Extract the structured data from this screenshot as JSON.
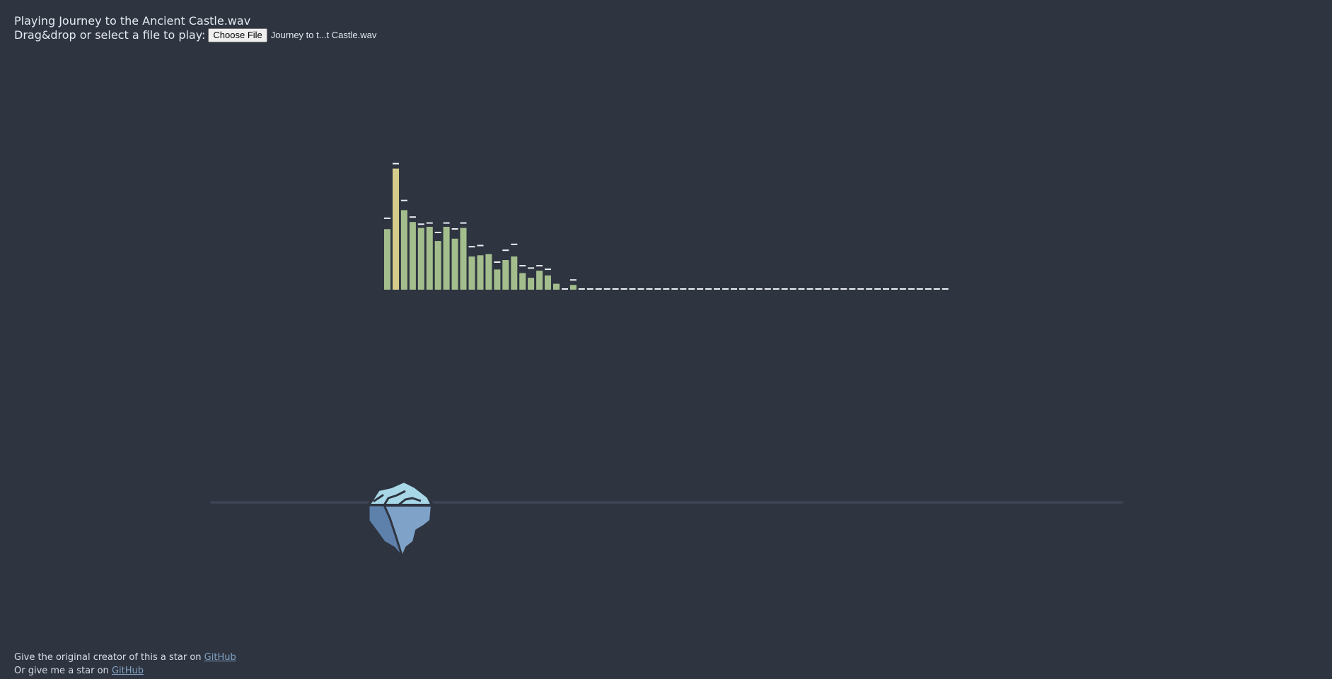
{
  "header": {
    "status_text": "Playing Journey to the Ancient Castle.wav",
    "file_prompt": "Drag&drop or select a file to play:",
    "choose_file_label": "Choose File",
    "selected_file_name": "Journey to t...t Castle.wav"
  },
  "visualizer": {
    "bar_color_normal": "#a3be8c",
    "bar_color_peak": "#d4cc8a",
    "cap_color": "#eceff4",
    "bars": [
      0.51,
      1.02,
      0.67,
      0.57,
      0.52,
      0.53,
      0.41,
      0.53,
      0.43,
      0.52,
      0.28,
      0.29,
      0.3,
      0.17,
      0.25,
      0.28,
      0.14,
      0.1,
      0.16,
      0.12,
      0.05,
      0.01,
      0.04,
      0.01,
      0.01,
      0.01,
      0.01,
      0.01,
      0.01,
      0.01,
      0.01,
      0.01,
      0.01,
      0.01,
      0.01,
      0.01,
      0.01,
      0.01,
      0.01,
      0.01,
      0.01,
      0.01,
      0.01,
      0.01,
      0.01,
      0.01,
      0.01,
      0.01,
      0.01,
      0.01,
      0.01,
      0.01,
      0.01,
      0.01,
      0.01,
      0.01,
      0.01,
      0.01,
      0.01,
      0.01,
      0.01,
      0.01,
      0.01,
      0.01,
      0.01,
      0.01,
      0.01
    ],
    "caps": [
      0.59,
      1.05,
      0.74,
      0.6,
      0.54,
      0.55,
      0.47,
      0.55,
      0.5,
      0.55,
      0.35,
      0.36,
      0.0,
      0.22,
      0.32,
      0.37,
      0.19,
      0.17,
      0.19,
      0.16,
      0.0,
      0.0,
      0.07,
      0.0,
      0.0,
      0.0,
      0.0,
      0.0,
      0.0,
      0.0,
      0.0,
      0.0,
      0.0,
      0.0,
      0.0,
      0.0,
      0.0,
      0.0,
      0.0,
      0.0,
      0.0,
      0.0,
      0.0,
      0.0,
      0.0,
      0.0,
      0.0,
      0.0,
      0.0,
      0.0,
      0.0,
      0.0,
      0.0,
      0.0,
      0.0,
      0.0,
      0.0,
      0.0,
      0.0,
      0.0,
      0.0,
      0.0,
      0.0,
      0.0,
      0.0,
      0.0,
      0.0
    ]
  },
  "player": {
    "progress": 0.21,
    "icon": "iceberg-icon"
  },
  "footer": {
    "line1_text": "Give the original creator of this a star on ",
    "line1_link": "GitHub",
    "line2_text": "Or give me a star on ",
    "line2_link": "GitHub"
  }
}
